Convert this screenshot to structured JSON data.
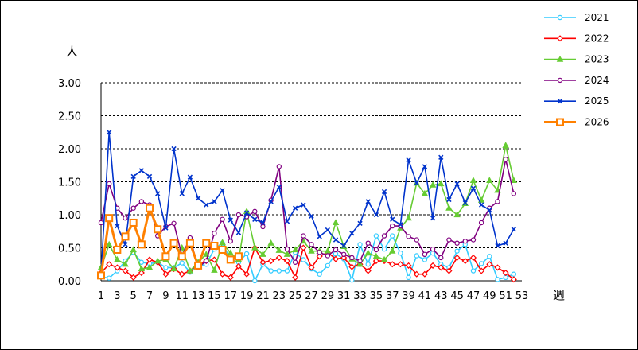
{
  "chart_data": {
    "type": "line",
    "ylabel": "人",
    "xlabel": "週",
    "ylim": [
      0,
      3.0
    ],
    "yticks": [
      "0.00",
      "0.50",
      "1.00",
      "1.50",
      "2.00",
      "2.50",
      "3.00"
    ],
    "xticks": [
      "1",
      "3",
      "5",
      "7",
      "9",
      "11",
      "13",
      "15",
      "17",
      "19",
      "21",
      "23",
      "25",
      "27",
      "29",
      "31",
      "33",
      "35",
      "37",
      "39",
      "41",
      "43",
      "45",
      "47",
      "49",
      "51",
      "53"
    ],
    "grid": "horizontal dashed",
    "legend_position": "right",
    "series": [
      {
        "name": "2021",
        "color": "#33ccff",
        "marker": "circle",
        "values": [
          0.06,
          0.04,
          0.15,
          0.3,
          0.43,
          0.28,
          0.26,
          0.28,
          0.2,
          0.2,
          0.27,
          0.13,
          0.22,
          0.25,
          0.48,
          0.57,
          0.32,
          0.28,
          0.41,
          0.0,
          0.25,
          0.15,
          0.15,
          0.15,
          0.43,
          0.32,
          0.18,
          0.1,
          0.23,
          0.41,
          0.33,
          0.01,
          0.55,
          0.25,
          0.68,
          0.48,
          0.68,
          0.42,
          0.05,
          0.38,
          0.32,
          0.42,
          0.25,
          0.2,
          0.45,
          0.55,
          0.15,
          0.26,
          0.37,
          0.02,
          0.05,
          0.1
        ]
      },
      {
        "name": "2022",
        "color": "#ff0000",
        "marker": "diamond",
        "values": [
          0.12,
          0.25,
          0.2,
          0.15,
          0.05,
          0.12,
          0.32,
          0.28,
          0.1,
          0.18,
          0.1,
          0.15,
          0.25,
          0.3,
          0.32,
          0.1,
          0.05,
          0.22,
          0.1,
          0.5,
          0.28,
          0.3,
          0.35,
          0.3,
          0.05,
          0.5,
          0.2,
          0.37,
          0.43,
          0.33,
          0.35,
          0.21,
          0.25,
          0.15,
          0.3,
          0.3,
          0.25,
          0.25,
          0.23,
          0.1,
          0.1,
          0.23,
          0.2,
          0.15,
          0.35,
          0.3,
          0.35,
          0.15,
          0.25,
          0.2,
          0.12,
          0.02
        ]
      },
      {
        "name": "2023",
        "color": "#66cc33",
        "marker": "triangle",
        "values": [
          0.2,
          0.55,
          0.32,
          0.25,
          0.47,
          0.18,
          0.2,
          0.3,
          0.32,
          0.18,
          0.5,
          0.15,
          0.28,
          0.4,
          0.16,
          0.58,
          0.42,
          0.32,
          1.05,
          0.5,
          0.4,
          0.57,
          0.46,
          0.4,
          0.47,
          0.6,
          0.45,
          0.45,
          0.45,
          0.88,
          0.52,
          0.33,
          0.25,
          0.42,
          0.37,
          0.32,
          0.45,
          0.8,
          0.95,
          1.48,
          1.32,
          1.45,
          1.47,
          1.1,
          1.0,
          1.17,
          1.52,
          1.22,
          1.52,
          1.37,
          2.05,
          1.52
        ]
      },
      {
        "name": "2024",
        "color": "#800080",
        "marker": "circle",
        "values": [
          0.88,
          1.47,
          1.1,
          0.95,
          1.1,
          1.2,
          1.15,
          0.68,
          0.82,
          0.87,
          0.38,
          0.65,
          0.2,
          0.3,
          0.72,
          0.93,
          0.6,
          1.0,
          0.97,
          1.05,
          0.82,
          1.22,
          1.73,
          0.48,
          0.28,
          0.68,
          0.55,
          0.43,
          0.38,
          0.47,
          0.4,
          0.35,
          0.3,
          0.57,
          0.47,
          0.68,
          0.83,
          0.83,
          0.67,
          0.62,
          0.4,
          0.48,
          0.35,
          0.62,
          0.57,
          0.6,
          0.62,
          0.88,
          1.1,
          1.2,
          1.84,
          1.32
        ]
      },
      {
        "name": "2025",
        "color": "#0033cc",
        "marker": "x",
        "values": [
          0.1,
          2.25,
          0.83,
          0.55,
          1.58,
          1.67,
          1.58,
          1.32,
          0.8,
          2.0,
          1.32,
          1.57,
          1.25,
          1.15,
          1.2,
          1.37,
          0.92,
          0.73,
          1.03,
          0.93,
          0.88,
          1.2,
          1.42,
          0.9,
          1.1,
          1.15,
          0.98,
          0.67,
          0.77,
          0.62,
          0.53,
          0.72,
          0.87,
          1.2,
          1.0,
          1.35,
          0.93,
          0.85,
          1.83,
          1.48,
          1.73,
          0.95,
          1.87,
          1.23,
          1.47,
          1.18,
          1.4,
          1.15,
          1.07,
          0.53,
          0.57,
          0.78
        ]
      },
      {
        "name": "2026",
        "color": "#ff8000",
        "marker": "square",
        "values": [
          0.08,
          0.95,
          0.47,
          0.67,
          0.88,
          0.55,
          1.1,
          0.78,
          0.37,
          0.57,
          0.37,
          0.57,
          0.23,
          0.57,
          0.53,
          0.47,
          0.32,
          0.37
        ]
      }
    ]
  }
}
